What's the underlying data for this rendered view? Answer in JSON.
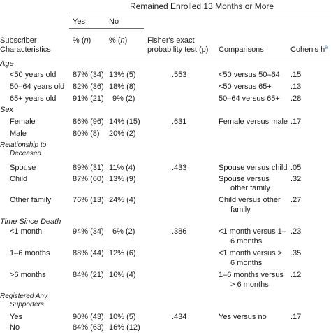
{
  "table": {
    "group_header": "Remained Enrolled 13 Months or More",
    "col_yes": "Yes",
    "col_no": "No",
    "col_char_line1": "Subscriber",
    "col_char_line2": "Characteristics",
    "col_yes_sub_pre": "% (",
    "col_yes_sub_n": "n",
    "col_yes_sub_post": ")",
    "col_no_sub_pre": "% (",
    "col_no_sub_n": "n",
    "col_no_sub_post": ")",
    "col_fisher_line1": "Fisher's exact",
    "col_fisher_line2": "probability test (p)",
    "col_comparisons": "Comparisons",
    "col_cohen": "Cohen's h",
    "col_cohen_sup": "a",
    "sections": {
      "age": "Age",
      "sex": "Sex",
      "rel_line1": "Relationship to",
      "rel_line2": "Deceased",
      "time": "Time Since Death",
      "reg_line1": "Registered Any",
      "reg_line2": "Supporters"
    },
    "rows": {
      "age1": {
        "label": "<50 years old",
        "yes": "87% (34)",
        "no": "13% (5)",
        "p": ".553",
        "cmp": "<50 versus 50–64",
        "h": ".15"
      },
      "age2": {
        "label": "50–64 years old",
        "yes": "82% (36)",
        "no": "18% (8)",
        "cmp": "<50 versus 65+",
        "h": ".13"
      },
      "age3": {
        "label": "65+ years old",
        "yes": "91% (21)",
        "no": "9% (2)",
        "cmp": "50–64 versus 65+",
        "h": ".28"
      },
      "sex1": {
        "label": "Female",
        "yes": "86% (96)",
        "no": "14% (15)",
        "p": ".631",
        "cmp": "Female versus male",
        "h": ".17"
      },
      "sex2": {
        "label": "Male",
        "yes": "80% (8)",
        "no": "20% (2)"
      },
      "rel1": {
        "label": "Spouse",
        "yes": "89% (31)",
        "no": "11% (4)",
        "p": ".433",
        "cmp": "Spouse versus child",
        "h": ".05"
      },
      "rel2": {
        "label": "Child",
        "yes": "87% (60)",
        "no": "13% (9)",
        "cmp1": "Spouse versus",
        "cmp2": "other family",
        "h": ".32"
      },
      "rel3": {
        "label": "Other family",
        "yes": "76% (13)",
        "no": "24% (4)",
        "cmp1": "Child versus other",
        "cmp2": "family",
        "h": ".27"
      },
      "time1": {
        "label": "<1 month",
        "yes": "94% (34)",
        "no": "6% (2)",
        "p": ".386",
        "cmp1": "<1 month versus 1–",
        "cmp2": "6 months",
        "h": ".23"
      },
      "time2": {
        "label": "1–6 months",
        "yes": "88% (44)",
        "no": "12% (6)",
        "cmp1": "<1 month versus >",
        "cmp2": "6 months",
        "h": ".35"
      },
      "time3": {
        "label": ">6 months",
        "yes": "84% (21)",
        "no": "16% (4)",
        "cmp1": "1–6 months versus",
        "cmp2": "> 6 months",
        "h": ".12"
      },
      "reg1": {
        "label": "Yes",
        "yes": "90% (43)",
        "no": "10% (5)",
        "p": ".434",
        "cmp": "Yes versus no",
        "h": ".17"
      },
      "reg2": {
        "label": "No",
        "yes": "84% (63)",
        "no": "16% (12)"
      }
    }
  }
}
